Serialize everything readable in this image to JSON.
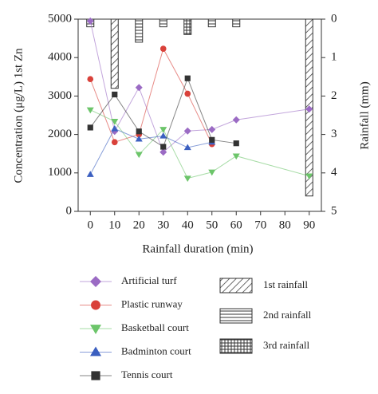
{
  "chart_data": {
    "type": "line",
    "x_label": "Rainfall duration (min)",
    "y_label": "Concentration (μg/L) 1st Zn",
    "y2_label": "Rainfall (mm)",
    "x": [
      0,
      10,
      20,
      30,
      40,
      50,
      60,
      90
    ],
    "xlim": [
      -5,
      95
    ],
    "xticks": [
      0,
      10,
      20,
      30,
      40,
      50,
      60,
      70,
      80,
      90
    ],
    "ylim": [
      0,
      5000
    ],
    "yticks": [
      0,
      1000,
      2000,
      3000,
      4000,
      5000
    ],
    "y2lim": [
      0,
      5
    ],
    "y2ticks": [
      0,
      1,
      2,
      3,
      4,
      5
    ],
    "y2_inverted": true,
    "series": [
      {
        "name": "Artificial turf",
        "color": "#9b6bc4",
        "marker": "diamond",
        "values": [
          4950,
          2080,
          3220,
          1540,
          2090,
          2130,
          2380,
          2660
        ]
      },
      {
        "name": "Plastic runway",
        "color": "#d9413a",
        "marker": "circle",
        "values": [
          3440,
          1800,
          2000,
          4230,
          3060,
          1750,
          null,
          null
        ]
      },
      {
        "name": "Basketball court",
        "color": "#6cc56a",
        "marker": "triangle-down",
        "values": [
          2640,
          2340,
          1480,
          2130,
          860,
          1020,
          1440,
          920
        ]
      },
      {
        "name": "Badminton court",
        "color": "#3b5fc0",
        "marker": "triangle-up",
        "values": [
          960,
          2150,
          1880,
          1960,
          1660,
          1800,
          null,
          null
        ]
      },
      {
        "name": "Tennis court",
        "color": "#333333",
        "marker": "square",
        "values": [
          2180,
          3040,
          2080,
          1680,
          3460,
          1860,
          1770,
          null
        ]
      },
      {
        "name": "1st rainfall",
        "type": "bar",
        "axis": "y2",
        "pattern": "diagonal",
        "values": [
          null,
          1.8,
          null,
          null,
          null,
          null,
          null,
          4.6
        ]
      },
      {
        "name": "2nd rainfall",
        "type": "bar",
        "axis": "y2",
        "pattern": "horizontal",
        "values": [
          0.2,
          null,
          0.6,
          0.2,
          null,
          0.2,
          0.2,
          null
        ]
      },
      {
        "name": "3rd rainfall",
        "type": "bar",
        "axis": "y2",
        "pattern": "grid",
        "values": [
          null,
          null,
          null,
          null,
          0.4,
          null,
          null,
          null
        ]
      }
    ]
  }
}
